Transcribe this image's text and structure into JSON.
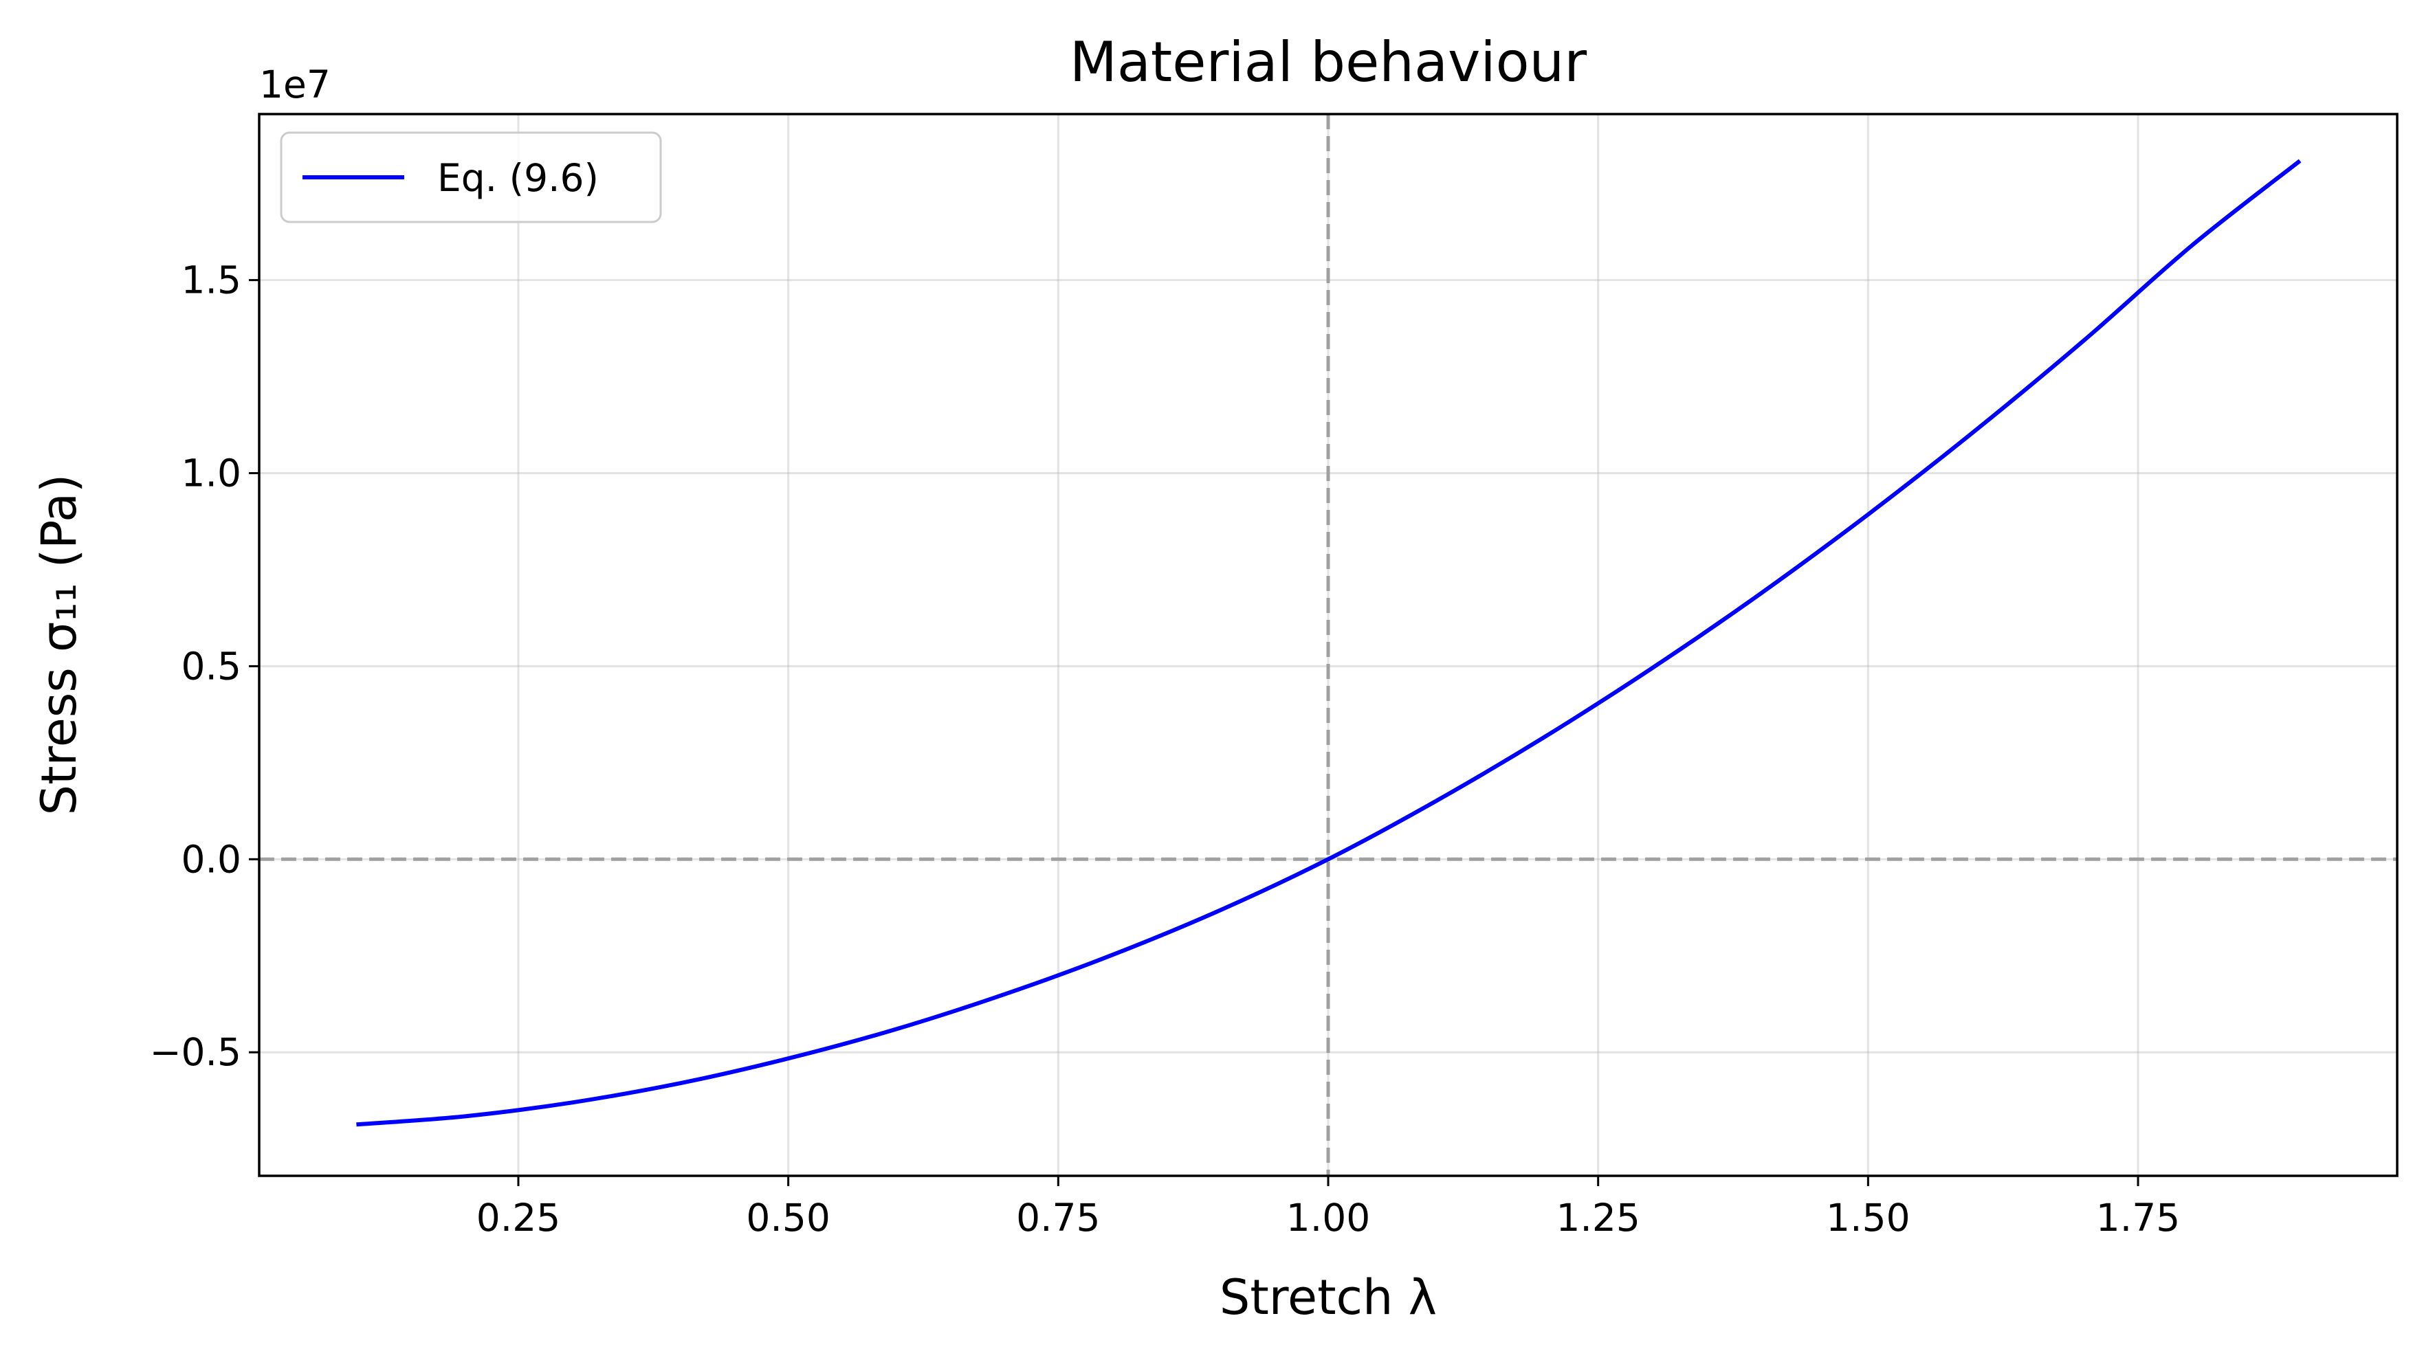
{
  "chart_data": {
    "type": "line",
    "title": "Material behaviour",
    "xlabel": "Stretch λ",
    "ylabel": "Stress σ₁₁ (Pa)",
    "y_offset_label": "1e7",
    "xlim": [
      0.01,
      1.99
    ],
    "ylim": [
      -0.82,
      1.93
    ],
    "x_ticks": [
      0.25,
      0.5,
      0.75,
      1.0,
      1.25,
      1.5,
      1.75
    ],
    "x_tick_labels": [
      "0.25",
      "0.50",
      "0.75",
      "1.00",
      "1.25",
      "1.50",
      "1.75"
    ],
    "y_ticks": [
      -0.5,
      0.0,
      0.5,
      1.0,
      1.5
    ],
    "y_tick_labels": [
      "−0.5",
      "0.0",
      "0.5",
      "1.0",
      "1.5"
    ],
    "y_scale_factor": 10000000,
    "grid": true,
    "legend_position": "upper-left",
    "reference_lines": {
      "vertical_x": 1.0,
      "horizontal_y": 0.0,
      "color": "#a0a0a0",
      "style": "dashed"
    },
    "series": [
      {
        "name": "Eq. (9.6)",
        "color": "#0000ff",
        "x": [
          0.1,
          0.2,
          0.3,
          0.4,
          0.5,
          0.6,
          0.7,
          0.8,
          0.9,
          1.0,
          1.1,
          1.2,
          1.3,
          1.4,
          1.5,
          1.6,
          1.7,
          1.8,
          1.9
        ],
        "y": [
          -0.687,
          -0.666,
          -0.63,
          -0.58,
          -0.516,
          -0.44,
          -0.35,
          -0.248,
          -0.132,
          0.0,
          0.151,
          0.316,
          0.495,
          0.687,
          0.893,
          1.112,
          1.344,
          1.59,
          1.809
        ]
      }
    ]
  }
}
